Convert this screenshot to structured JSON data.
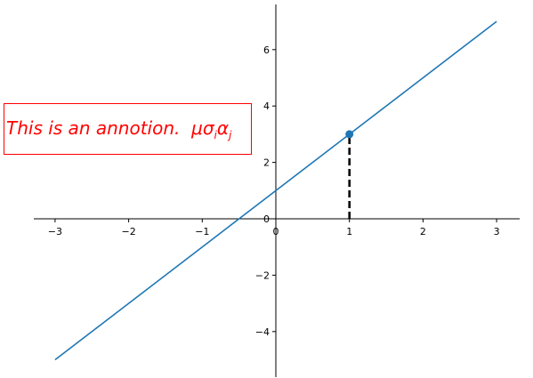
{
  "chart_data": {
    "type": "line",
    "title": "",
    "xlabel": "",
    "ylabel": "",
    "xlim": [
      -3.3,
      3.3
    ],
    "ylim": [
      -5.6,
      7.6
    ],
    "x_ticks": [
      -3,
      -2,
      -1,
      0,
      1,
      2,
      3
    ],
    "y_ticks": [
      -4,
      -2,
      0,
      2,
      4,
      6
    ],
    "x_tick_labels": [
      "−3",
      "−2",
      "−1",
      "0",
      "1",
      "2",
      "3"
    ],
    "y_tick_labels": [
      "−4",
      "−2",
      "0",
      "2",
      "4",
      "6"
    ],
    "series": [
      {
        "x": [
          -3,
          3
        ],
        "y": [
          -5,
          7
        ],
        "color": "#1f77b4"
      }
    ],
    "highlight_point": {
      "x": 1,
      "y": 3,
      "color": "#1f77b4"
    },
    "guide_line": {
      "x": [
        1,
        1
      ],
      "y": [
        0,
        3
      ],
      "color": "#000000",
      "style": "dashed"
    },
    "annotation": {
      "text": "This is an annotion.",
      "math": "μσ",
      "sub1": "i",
      "math2": "α",
      "sub2": "j",
      "color": "#ff0000"
    },
    "spines": "centered at origin",
    "grid": false
  }
}
